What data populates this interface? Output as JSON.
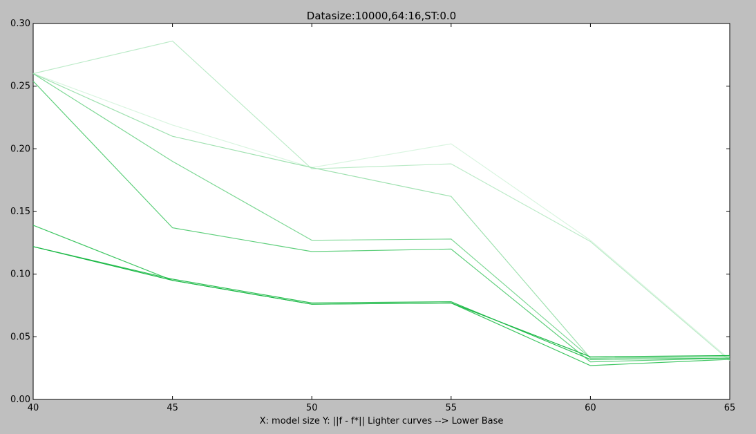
{
  "chart_data": {
    "type": "line",
    "title": "Datasize:10000,64:16,ST:0.0",
    "xlabel": "X: model size Y: ||f - f*|| Lighter curves --> Lower Base",
    "ylabel": "",
    "x": [
      40,
      45,
      50,
      55,
      60,
      65
    ],
    "xlim": [
      40,
      65
    ],
    "ylim": [
      0,
      0.3
    ],
    "x_ticks": [
      "40",
      "45",
      "50",
      "55",
      "60",
      "65"
    ],
    "y_ticks": [
      "0.00",
      "0.05",
      "0.10",
      "0.15",
      "0.20",
      "0.25",
      "0.30"
    ],
    "grid": false,
    "series": [
      {
        "values": [
          0.26,
          0.219,
          0.185,
          0.204,
          0.127,
          0.032
        ],
        "color": "#d9f5e0"
      },
      {
        "values": [
          0.26,
          0.286,
          0.184,
          0.188,
          0.126,
          0.031
        ],
        "color": "#bdebc9"
      },
      {
        "values": [
          0.26,
          0.21,
          0.185,
          0.162,
          0.033,
          0.034
        ],
        "color": "#9fe1b0"
      },
      {
        "values": [
          0.26,
          0.19,
          0.127,
          0.128,
          0.033,
          0.034
        ],
        "color": "#7fd896"
      },
      {
        "values": [
          0.254,
          0.137,
          0.118,
          0.12,
          0.03,
          0.033
        ],
        "color": "#5fcf7c"
      },
      {
        "values": [
          0.139,
          0.095,
          0.076,
          0.077,
          0.027,
          0.032
        ],
        "color": "#40c663"
      },
      {
        "values": [
          0.122,
          0.096,
          0.077,
          0.078,
          0.032,
          0.033
        ],
        "color": "#2bbf53"
      },
      {
        "values": [
          0.122,
          0.095,
          0.076,
          0.077,
          0.034,
          0.035
        ],
        "color": "#1ab845"
      }
    ]
  }
}
